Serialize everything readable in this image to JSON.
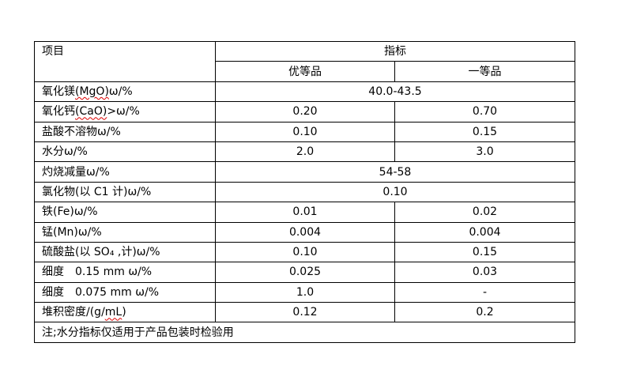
{
  "header": {
    "item": "项目",
    "indicator": "指标",
    "grade_superior": "优等品",
    "grade_first": "一等品"
  },
  "rows": [
    {
      "name_cn": "氧化镁",
      "name_sq": "(MgO)",
      "name_rest": "ω/%",
      "merged": "40.0-43.5"
    },
    {
      "name_cn": "氧化钙",
      "name_sq": "(CaO)",
      "name_rest": ">ω/%",
      "superior": "0.20",
      "first": "0.70"
    },
    {
      "name": "盐酸不溶物ω/%",
      "superior": "0.10",
      "first": "0.15"
    },
    {
      "name": "水分ω/%",
      "superior": "2.0",
      "first": "3.0"
    },
    {
      "name": "灼烧减量ω/%",
      "merged": "54-58"
    },
    {
      "name": "氯化物(以 C1 计)ω/%",
      "merged": "0.10"
    },
    {
      "name": "铁(Fe)ω/%",
      "superior": "0.01",
      "first": "0.02"
    },
    {
      "name": "锰(Mn)ω/%",
      "superior": "0.004",
      "first": "0.004"
    },
    {
      "name": "硫酸盐(以 SO₄ ,计)ω/%",
      "superior": "0.10",
      "first": "0.15"
    },
    {
      "name": "细度　0.15 mm ω/%",
      "superior": "0.025",
      "first": "0.03"
    },
    {
      "name": "细度　0.075 mm ω/%",
      "superior": "1.0",
      "first": "-"
    },
    {
      "name_cn": "堆积密度/(g/",
      "name_sq": "mL",
      "name_rest": ")",
      "superior": "0.12",
      "first": "0.2"
    }
  ],
  "note": "注;水分指标仅适用于产品包装时检验用"
}
